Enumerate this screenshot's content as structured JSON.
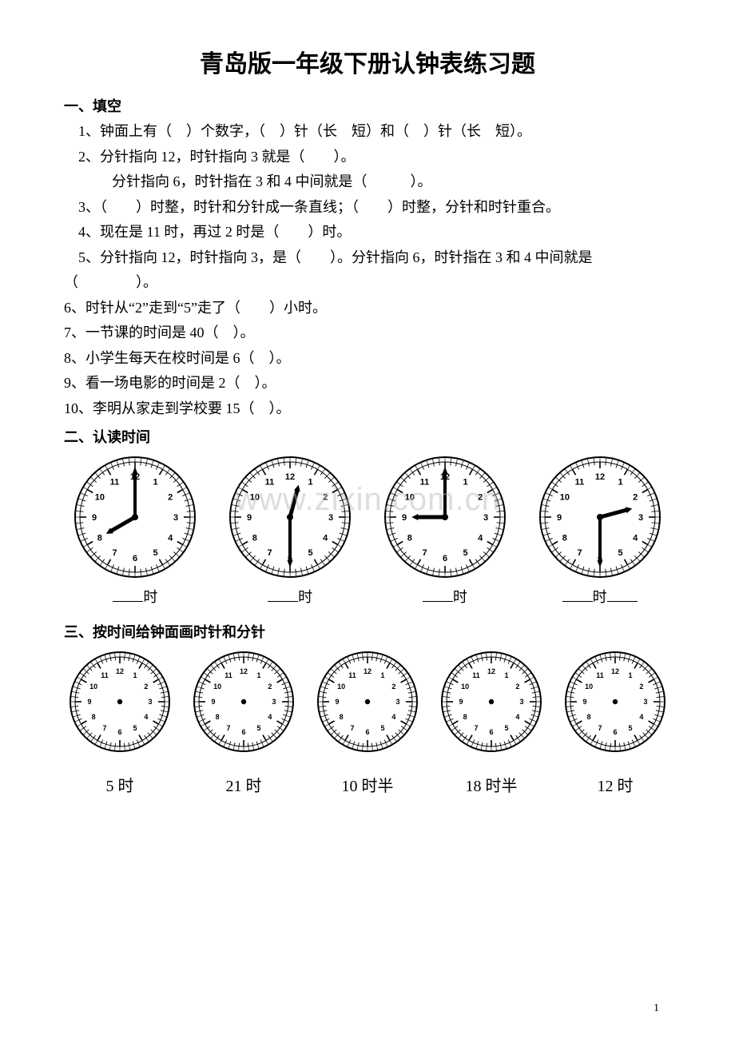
{
  "title": "青岛版一年级下册认钟表练习题",
  "section1": {
    "heading": "一、填空",
    "q1": "1、钟面上有（　）个数字，（　）针（长　短）和（　）针（长　短）。",
    "q2": "2、分针指向 12，时针指向 3 就是（　　）。",
    "q2b": "分针指向 6，时针指在 3 和 4 中间就是（　　　）。",
    "q3": "3、（　　）时整，时针和分针成一条直线；（　　）时整，分针和时针重合。",
    "q4": "4、现在是 11 时，再过 2 时是（　　）时。",
    "q5a": "5、分针指向 12，时针指向 3，是（　　）。分针指向 6，时针指在 3 和 4 中间就是",
    "q5b": "（　　　　）。",
    "q6": "6、时针从“2”走到“5”走了（　　）小时。",
    "q7": "7、一节课的时间是 40（　）。",
    "q8": "8、小学生每天在校时间是 6（　）。",
    "q9": "9、看一场电影的时间是 2（　）。",
    "q10": "10、李明从家走到学校要 15（　）。"
  },
  "section2": {
    "heading": "二、认读时间",
    "clocks": [
      {
        "hour": 8,
        "minute": 0,
        "radius": 75
      },
      {
        "hour": 12,
        "minute": 30,
        "radius": 75
      },
      {
        "hour": 9,
        "minute": 0,
        "radius": 75
      },
      {
        "hour": 2,
        "minute": 30,
        "radius": 75
      }
    ],
    "label_shi": "时"
  },
  "section3": {
    "heading": "三、按时间给钟面画时针和分针",
    "clocks": [
      {
        "label": "5 时",
        "radius": 62
      },
      {
        "label": "21 时",
        "radius": 62
      },
      {
        "label": "10 时半",
        "radius": 62
      },
      {
        "label": "18 时半",
        "radius": 62
      },
      {
        "label": "12 时",
        "radius": 62
      }
    ]
  },
  "watermark": "www.zixin.com.cn",
  "pagenum": "1",
  "style": {
    "clock_stroke": "#000000",
    "clock_fill": "#ffffff",
    "number_fontsize_large": 11,
    "number_fontsize_small": 9
  }
}
